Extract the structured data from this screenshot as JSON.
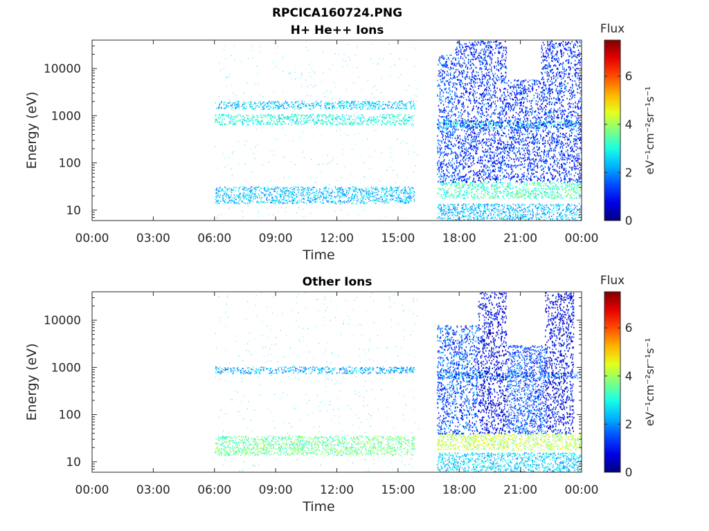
{
  "figure": {
    "title_line1": "RPCICA160724.PNG"
  },
  "chart_data": [
    {
      "type": "heatmap",
      "title": "H+ He++ Ions",
      "xlabel": "Time",
      "ylabel": "Energy (eV)",
      "x_ticks": [
        "00:00",
        "03:00",
        "06:00",
        "09:00",
        "12:00",
        "15:00",
        "18:00",
        "21:00",
        "00:00"
      ],
      "xlim_hours": [
        0,
        24
      ],
      "y_scale": "log",
      "y_ticks": [
        {
          "value": 10,
          "label": "10"
        },
        {
          "value": 100,
          "label": "100"
        },
        {
          "value": 1000,
          "label": "1000"
        },
        {
          "value": 10000,
          "label": "10000"
        }
      ],
      "ylim": [
        6,
        40000
      ],
      "colorbar": {
        "label_title": "Flux",
        "label_unit": "eV⁻¹cm⁻²sr⁻¹s⁻¹",
        "range": [
          0,
          7.5
        ],
        "ticks": [
          {
            "value": 0,
            "label": "0"
          },
          {
            "value": 2,
            "label": "2"
          },
          {
            "value": 4,
            "label": "4"
          },
          {
            "value": 6,
            "label": "6"
          }
        ],
        "colormap": "jet"
      },
      "features": [
        {
          "t0": 6.0,
          "t1": 15.8,
          "e0": 650,
          "e1": 1100,
          "flux": 3.0
        },
        {
          "t0": 6.0,
          "t1": 15.8,
          "e0": 1400,
          "e1": 2100,
          "flux": 2.4
        },
        {
          "t0": 6.0,
          "t1": 15.8,
          "e0": 14,
          "e1": 32,
          "flux": 2.4
        },
        {
          "t0": 16.9,
          "t1": 24.0,
          "e0": 18,
          "e1": 40,
          "flux": 3.2
        },
        {
          "t0": 16.9,
          "t1": 24.0,
          "e0": 6,
          "e1": 14,
          "flux": 2.3
        },
        {
          "t0": 16.9,
          "t1": 24.0,
          "e0": 550,
          "e1": 800,
          "flux": 2.6
        },
        {
          "t0": 17.8,
          "t1": 20.3,
          "e0": 40,
          "e1": 40000,
          "flux": 1.2
        },
        {
          "t0": 22.0,
          "t1": 24.0,
          "e0": 40,
          "e1": 40000,
          "flux": 1.2
        },
        {
          "t0": 20.3,
          "t1": 22.0,
          "e0": 40,
          "e1": 6000,
          "flux": 1.2
        },
        {
          "t0": 16.9,
          "t1": 17.8,
          "e0": 40,
          "e1": 20000,
          "flux": 1.5
        }
      ]
    },
    {
      "type": "heatmap",
      "title": "Other Ions",
      "xlabel": "Time",
      "ylabel": "Energy (eV)",
      "x_ticks": [
        "00:00",
        "03:00",
        "06:00",
        "09:00",
        "12:00",
        "15:00",
        "18:00",
        "21:00",
        "00:00"
      ],
      "xlim_hours": [
        0,
        24
      ],
      "y_scale": "log",
      "y_ticks": [
        {
          "value": 10,
          "label": "10"
        },
        {
          "value": 100,
          "label": "100"
        },
        {
          "value": 1000,
          "label": "1000"
        },
        {
          "value": 10000,
          "label": "10000"
        }
      ],
      "ylim": [
        6,
        40000
      ],
      "colorbar": {
        "label_title": "Flux",
        "label_unit": "eV⁻¹cm⁻²sr⁻¹s⁻¹",
        "range": [
          0,
          7.5
        ],
        "ticks": [
          {
            "value": 0,
            "label": "0"
          },
          {
            "value": 2,
            "label": "2"
          },
          {
            "value": 4,
            "label": "4"
          },
          {
            "value": 6,
            "label": "6"
          }
        ],
        "colormap": "jet"
      },
      "features": [
        {
          "t0": 6.0,
          "t1": 15.8,
          "e0": 14,
          "e1": 36,
          "flux": 3.6
        },
        {
          "t0": 6.0,
          "t1": 15.8,
          "e0": 750,
          "e1": 1050,
          "flux": 2.2
        },
        {
          "t0": 16.9,
          "t1": 24.0,
          "e0": 18,
          "e1": 40,
          "flux": 4.2
        },
        {
          "t0": 16.9,
          "t1": 24.0,
          "e0": 6,
          "e1": 16,
          "flux": 2.5
        },
        {
          "t0": 16.9,
          "t1": 24.0,
          "e0": 600,
          "e1": 800,
          "flux": 1.8
        },
        {
          "t0": 18.9,
          "t1": 20.3,
          "e0": 40,
          "e1": 40000,
          "flux": 0.8
        },
        {
          "t0": 22.2,
          "t1": 23.6,
          "e0": 40,
          "e1": 40000,
          "flux": 0.8
        },
        {
          "t0": 16.9,
          "t1": 18.9,
          "e0": 40,
          "e1": 8000,
          "flux": 1.5
        },
        {
          "t0": 20.3,
          "t1": 22.2,
          "e0": 40,
          "e1": 3000,
          "flux": 1.5
        }
      ]
    }
  ]
}
